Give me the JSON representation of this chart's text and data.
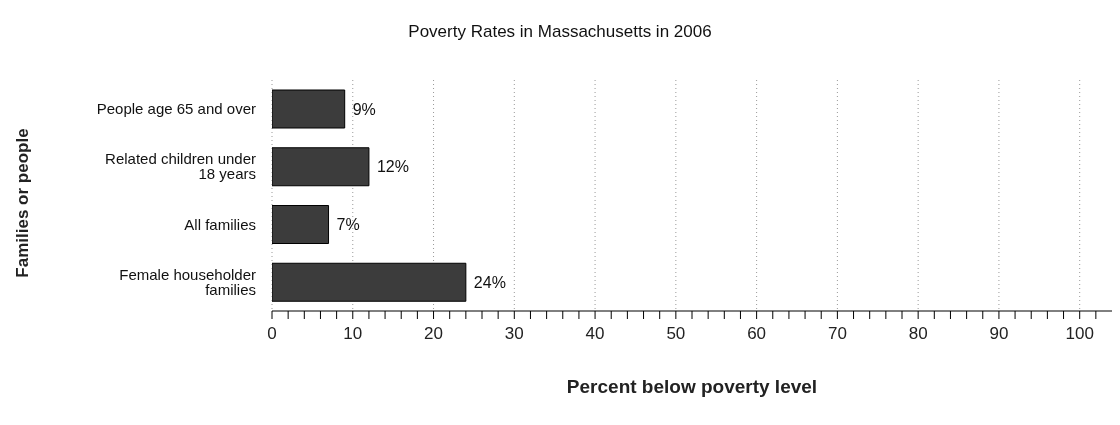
{
  "chart_data": {
    "type": "bar",
    "orientation": "horizontal",
    "title": "Poverty Rates in Massachusetts in 2006",
    "xlabel": "Percent below poverty level",
    "ylabel": "Families or people",
    "categories": [
      "People age 65 and over",
      "Related children under 18 years",
      "All families",
      "Female householder families"
    ],
    "values": [
      9,
      12,
      7,
      24
    ],
    "value_labels": [
      "9%",
      "12%",
      "7%",
      "24%"
    ],
    "color": "#3c3c3c",
    "xlim": [
      0,
      104
    ],
    "xticks": [
      0,
      {
        "value": 2,
        "label": null
      },
      {
        "value": 4,
        "label": null
      },
      {
        "value": 6,
        "label": null
      },
      {
        "value": 8,
        "label": null
      },
      10,
      {
        "value": 12,
        "label": null
      },
      {
        "value": 14,
        "label": null
      },
      {
        "value": 16,
        "label": null
      },
      {
        "value": 18,
        "label": null
      },
      20,
      {
        "value": 22,
        "label": null
      },
      {
        "value": 24,
        "label": null
      },
      {
        "value": 26,
        "label": null
      },
      {
        "value": 28,
        "label": null
      },
      30,
      {
        "value": 32,
        "label": null
      },
      {
        "value": 34,
        "label": null
      },
      {
        "value": 36,
        "label": null
      },
      {
        "value": 38,
        "label": null
      },
      40,
      {
        "value": 42,
        "label": null
      },
      {
        "value": 44,
        "label": null
      },
      {
        "value": 46,
        "label": null
      },
      {
        "value": 48,
        "label": null
      },
      50,
      {
        "value": 52,
        "label": null
      },
      {
        "value": 54,
        "label": null
      },
      {
        "value": 56,
        "label": null
      },
      {
        "value": 58,
        "label": null
      },
      60,
      {
        "value": 62,
        "label": null
      },
      {
        "value": 64,
        "label": null
      },
      {
        "value": 66,
        "label": null
      },
      {
        "value": 68,
        "label": null
      },
      70,
      {
        "value": 72,
        "label": null
      },
      {
        "value": 74,
        "label": null
      },
      {
        "value": 76,
        "label": null
      },
      {
        "value": 78,
        "label": null
      },
      80,
      {
        "value": 82,
        "label": null
      },
      {
        "value": 84,
        "label": null
      },
      {
        "value": 86,
        "label": null
      },
      {
        "value": 88,
        "label": null
      },
      90,
      {
        "value": 92,
        "label": null
      },
      {
        "value": 94,
        "label": null
      },
      {
        "value": 96,
        "label": null
      },
      {
        "value": 98,
        "label": null
      },
      100,
      {
        "value": 102,
        "label": null
      }
    ],
    "grid": "x",
    "legend": false
  }
}
